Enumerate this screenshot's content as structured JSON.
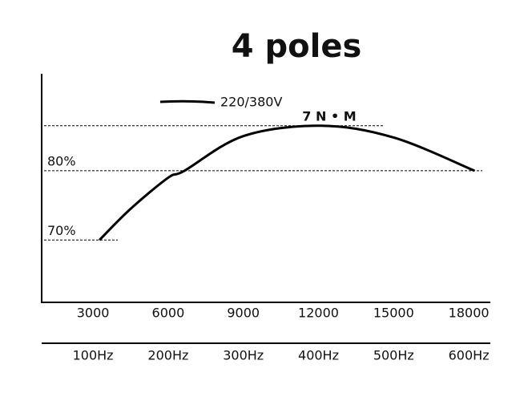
{
  "chart_data": {
    "type": "line",
    "title": "4 poles",
    "x": [
      3256,
      4500,
      6000,
      6650,
      9000,
      12083,
      15000,
      18230
    ],
    "series": [
      {
        "name": "220/380V",
        "color": "#000000",
        "values": [
          70,
          74.5,
          79,
          80,
          85,
          86.5,
          84.8,
          80
        ]
      }
    ],
    "xlim": [
      950,
      18860
    ],
    "xticks": [
      3000,
      6000,
      9000,
      12000,
      15000,
      18000
    ],
    "frequency_labels": [
      "100Hz",
      "200Hz",
      "300Hz",
      "400Hz",
      "500Hz",
      "600Hz"
    ],
    "ylim": [
      61,
      94
    ],
    "reference_lines": [
      {
        "value": 86.5,
        "label": "7 N • M"
      },
      {
        "value": 80,
        "label": "80%"
      },
      {
        "value": 70,
        "label": "70%"
      }
    ],
    "legend": "top-left"
  }
}
